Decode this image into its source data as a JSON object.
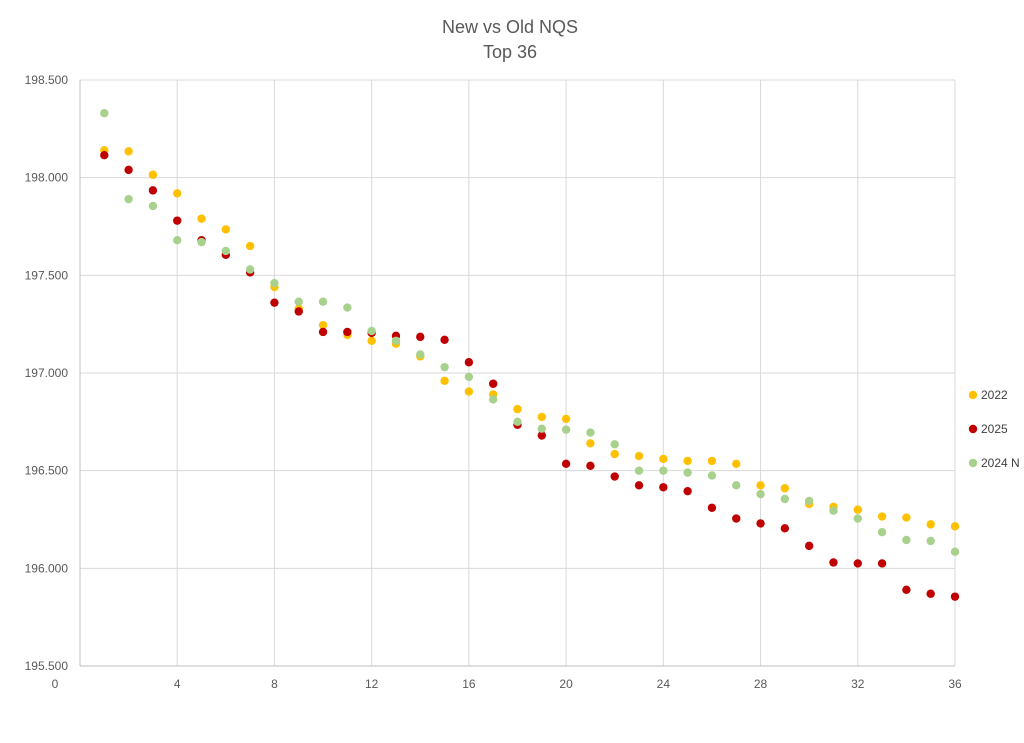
{
  "chart_data": {
    "type": "scatter",
    "title": "New vs Old NQS",
    "subtitle": "Top 36",
    "xlabel": "",
    "ylabel": "",
    "xlim": [
      0,
      36
    ],
    "ylim": [
      195.5,
      198.5
    ],
    "x_ticks": [
      "0",
      "4",
      "8",
      "12",
      "16",
      "20",
      "24",
      "28",
      "32",
      "36"
    ],
    "y_ticks": [
      "198.500",
      "198.000",
      "197.500",
      "197.000",
      "196.500",
      "196.000",
      "195.500"
    ],
    "grid": true,
    "legend_position": "right",
    "series": [
      {
        "name": "2022",
        "color": "#FFC000",
        "x": [
          1,
          2,
          3,
          4,
          5,
          6,
          7,
          8,
          9,
          10,
          11,
          12,
          13,
          14,
          15,
          16,
          17,
          18,
          19,
          20,
          21,
          22,
          23,
          24,
          25,
          26,
          27,
          28,
          29,
          30,
          31,
          32,
          33,
          34,
          35,
          36
        ],
        "y": [
          198.14,
          198.135,
          198.015,
          197.92,
          197.79,
          197.735,
          197.65,
          197.44,
          197.33,
          197.245,
          197.195,
          197.165,
          197.15,
          197.085,
          196.96,
          196.905,
          196.89,
          196.815,
          196.775,
          196.765,
          196.64,
          196.585,
          196.575,
          196.56,
          196.55,
          196.55,
          196.535,
          196.425,
          196.41,
          196.33,
          196.315,
          196.3,
          196.265,
          196.26,
          196.225,
          196.215
        ]
      },
      {
        "name": "2025",
        "color": "#C00000",
        "x": [
          1,
          2,
          3,
          4,
          5,
          6,
          7,
          8,
          9,
          10,
          11,
          12,
          13,
          14,
          15,
          16,
          17,
          18,
          19,
          20,
          21,
          22,
          23,
          24,
          25,
          26,
          27,
          28,
          29,
          30,
          31,
          32,
          33,
          34,
          35,
          36
        ],
        "y": [
          198.115,
          198.04,
          197.935,
          197.78,
          197.68,
          197.605,
          197.515,
          197.36,
          197.315,
          197.21,
          197.21,
          197.205,
          197.19,
          197.185,
          197.17,
          197.055,
          196.945,
          196.735,
          196.68,
          196.535,
          196.525,
          196.47,
          196.425,
          196.415,
          196.395,
          196.31,
          196.255,
          196.23,
          196.205,
          196.115,
          196.03,
          196.025,
          196.025,
          195.89,
          195.87,
          195.855
        ]
      },
      {
        "name": "2024 N",
        "color": "#A9D18E",
        "x": [
          1,
          2,
          3,
          4,
          5,
          6,
          7,
          8,
          9,
          10,
          11,
          12,
          13,
          14,
          15,
          16,
          17,
          18,
          19,
          20,
          21,
          22,
          23,
          24,
          25,
          26,
          27,
          28,
          29,
          30,
          31,
          32,
          33,
          34,
          35,
          36
        ],
        "y": [
          198.33,
          197.89,
          197.855,
          197.68,
          197.67,
          197.625,
          197.53,
          197.46,
          197.365,
          197.365,
          197.335,
          197.215,
          197.165,
          197.095,
          197.03,
          196.98,
          196.865,
          196.75,
          196.715,
          196.71,
          196.695,
          196.635,
          196.5,
          196.5,
          196.49,
          196.475,
          196.425,
          196.38,
          196.355,
          196.345,
          196.295,
          196.255,
          196.185,
          196.145,
          196.14,
          196.085
        ]
      }
    ]
  }
}
